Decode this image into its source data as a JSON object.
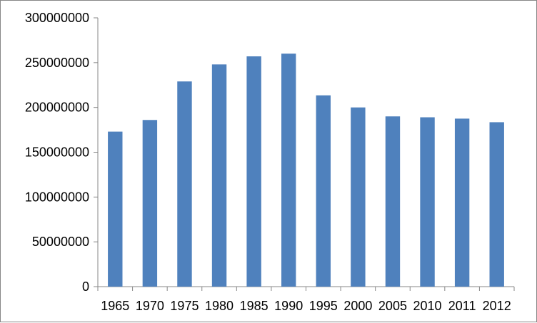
{
  "chart_data": {
    "type": "bar",
    "categories": [
      "1965",
      "1970",
      "1975",
      "1980",
      "1985",
      "1990",
      "1995",
      "2000",
      "2005",
      "2010",
      "2011",
      "2012"
    ],
    "series": [
      {
        "values": [
          173000000,
          186000000,
          229000000,
          248000000,
          257000000,
          260000000,
          213500000,
          200000000,
          190000000,
          189000000,
          187500000,
          183500000
        ],
        "color": "#4F81BD"
      }
    ],
    "yticks": [
      "0",
      "50000000",
      "100000000",
      "150000000",
      "200000000",
      "250000000",
      "300000000"
    ],
    "ylim": [
      0,
      300000000
    ],
    "grid": false,
    "legend": "none",
    "title": "",
    "xlabel": "",
    "ylabel": ""
  }
}
